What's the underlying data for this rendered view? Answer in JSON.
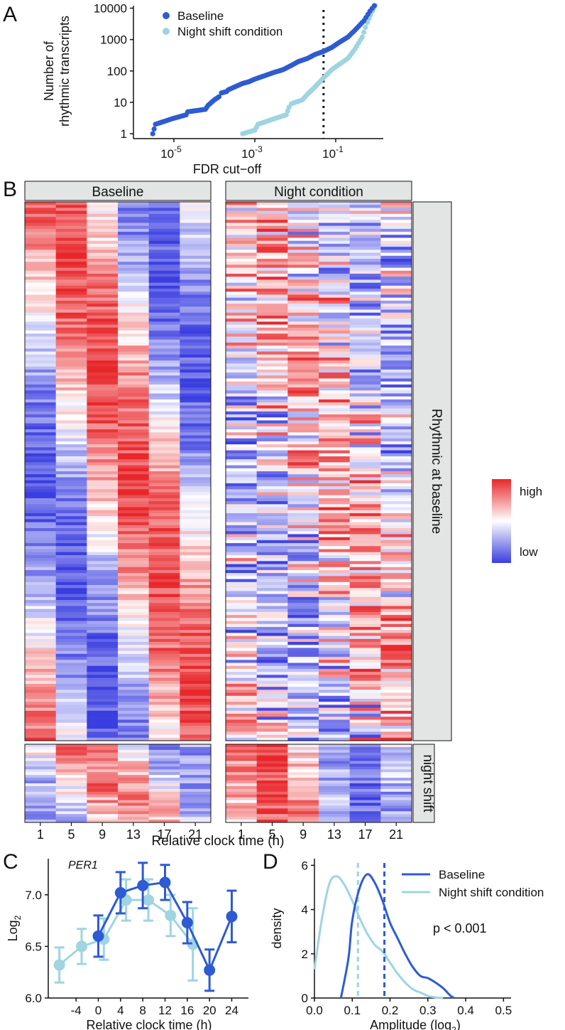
{
  "colors": {
    "baseline": "#2e5bd1",
    "night": "#9fd4e0",
    "strip_fill": "#e3e5e5",
    "heat_high": "#e8272b",
    "heat_mid": "#ffffff",
    "heat_low": "#3a3ee0"
  },
  "panels": {
    "a": "A",
    "b": "B",
    "c": "C",
    "d": "D"
  },
  "legend": {
    "baseline": "Baseline",
    "night": "Night shift condition"
  },
  "chart_data": [
    {
      "panel": "A",
      "type": "scatter",
      "xlabel": "FDR cut−off",
      "ylabel_line1": "Number of",
      "ylabel_line2": "rhythmic transcripts",
      "xscale": "log",
      "yscale": "log",
      "xlim": [
        1e-06,
        1.5
      ],
      "ylim": [
        0.7,
        12000
      ],
      "x_ticks": [
        {
          "base": "10",
          "exp": "-5",
          "value": 1e-05
        },
        {
          "base": "10",
          "exp": "-3",
          "value": 0.001
        },
        {
          "base": "10",
          "exp": "-1",
          "value": 0.1
        }
      ],
      "y_ticks": [
        {
          "label": "1",
          "value": 1
        },
        {
          "label": "10",
          "value": 10
        },
        {
          "label": "100",
          "value": 100
        },
        {
          "label": "1000",
          "value": 1000
        },
        {
          "label": "10000",
          "value": 10000
        }
      ],
      "cutoff_line": 0.05,
      "legend_position": "top-left",
      "series": [
        {
          "name": "Baseline",
          "x": [
            3e-06,
            3.5e-06,
            9e-06,
            2e-05,
            2.2e-05,
            6e-05,
            7e-05,
            0.0001,
            0.00013,
            0.00015,
            0.0002,
            0.00022,
            0.0003,
            0.0005,
            0.0007,
            0.001,
            0.002,
            0.003,
            0.005,
            0.008,
            0.012,
            0.02,
            0.03,
            0.05,
            0.08,
            0.12,
            0.2,
            0.3,
            0.5,
            0.7,
            0.9
          ],
          "y": [
            1,
            2,
            3,
            4,
            5,
            6,
            8,
            12,
            15,
            20,
            22,
            25,
            30,
            40,
            45,
            55,
            75,
            90,
            110,
            150,
            200,
            250,
            330,
            420,
            560,
            800,
            1200,
            2000,
            4000,
            8000,
            12000
          ]
        },
        {
          "name": "Night shift condition",
          "x": [
            0.0005,
            0.001,
            0.0012,
            0.003,
            0.006,
            0.007,
            0.008,
            0.01,
            0.015,
            0.02,
            0.03,
            0.05,
            0.08,
            0.12,
            0.2,
            0.3,
            0.45,
            0.6,
            0.8,
            0.95
          ],
          "y": [
            1,
            1.3,
            2,
            3,
            4,
            7,
            9,
            10,
            12,
            18,
            30,
            60,
            110,
            160,
            250,
            500,
            1200,
            3500,
            8000,
            12000
          ]
        }
      ]
    },
    {
      "panel": "B",
      "type": "heatmap",
      "facets": [
        "Baseline",
        "Night condition"
      ],
      "row_groups": [
        "Rhythmic at baseline",
        "night shift"
      ],
      "x_ticks": [
        "1",
        "5",
        "9",
        "13",
        "17",
        "21"
      ],
      "xlabel": "Relative clock time (h)",
      "colorbar": {
        "high": "high",
        "low": "low"
      }
    },
    {
      "panel": "C",
      "type": "line",
      "title": "PER1",
      "xlabel": "Relative clock time (h)",
      "ylabel_base": "Log",
      "ylabel_sub": "2",
      "xlim": [
        -9,
        27
      ],
      "ylim": [
        6.0,
        7.35
      ],
      "x_ticks": [
        "-4",
        "0",
        "4",
        "8",
        "12",
        "16",
        "20",
        "24"
      ],
      "y_ticks": [
        "6.0",
        "6.5",
        "7.0"
      ],
      "series": [
        {
          "name": "Baseline",
          "x": [
            0,
            4,
            8,
            12,
            16,
            20,
            24
          ],
          "y": [
            6.6,
            7.02,
            7.09,
            7.12,
            6.73,
            6.27,
            6.79
          ],
          "err": [
            0.2,
            0.2,
            0.22,
            0.17,
            0.2,
            0.2,
            0.25
          ]
        },
        {
          "name": "Night shift condition",
          "x": [
            -7,
            -3,
            1,
            5,
            9,
            13,
            17
          ],
          "y": [
            6.32,
            6.5,
            6.57,
            6.95,
            6.95,
            6.8,
            6.52
          ],
          "err": [
            0.17,
            0.17,
            0.2,
            0.2,
            0.2,
            0.2,
            0.35
          ]
        }
      ]
    },
    {
      "panel": "D",
      "type": "area",
      "xlabel_base": "Amplitude (log",
      "xlabel_sub": "2",
      "xlabel_end": ")",
      "ylabel": "density",
      "xlim": [
        0,
        0.52
      ],
      "ylim": [
        0,
        6.3
      ],
      "x_ticks": [
        "0.0",
        "0.1",
        "0.2",
        "0.3",
        "0.4",
        "0.5"
      ],
      "y_ticks": [
        "0",
        "2",
        "4",
        "6"
      ],
      "annotation": "p < 0.001",
      "legend_position": "top-right",
      "series": [
        {
          "name": "Baseline",
          "median": 0.185,
          "x": [
            0.07,
            0.09,
            0.1,
            0.12,
            0.14,
            0.16,
            0.18,
            0.2,
            0.22,
            0.24,
            0.26,
            0.28,
            0.3,
            0.32,
            0.34,
            0.36,
            0.37
          ],
          "y": [
            0,
            1.8,
            3.5,
            5.0,
            5.6,
            5.2,
            4.4,
            3.4,
            2.7,
            2.0,
            1.4,
            1.0,
            0.9,
            0.7,
            0.45,
            0.1,
            0
          ]
        },
        {
          "name": "Night shift condition",
          "median": 0.115,
          "x": [
            0.0,
            0.02,
            0.04,
            0.06,
            0.08,
            0.1,
            0.12,
            0.14,
            0.16,
            0.18,
            0.2,
            0.22,
            0.24,
            0.26,
            0.28,
            0.3,
            0.32,
            0.34
          ],
          "y": [
            1.3,
            3.6,
            5.2,
            5.5,
            5.1,
            4.4,
            3.6,
            2.9,
            2.4,
            2.1,
            1.6,
            1.1,
            0.7,
            0.4,
            0.25,
            0.1,
            0.03,
            0
          ]
        }
      ]
    }
  ]
}
